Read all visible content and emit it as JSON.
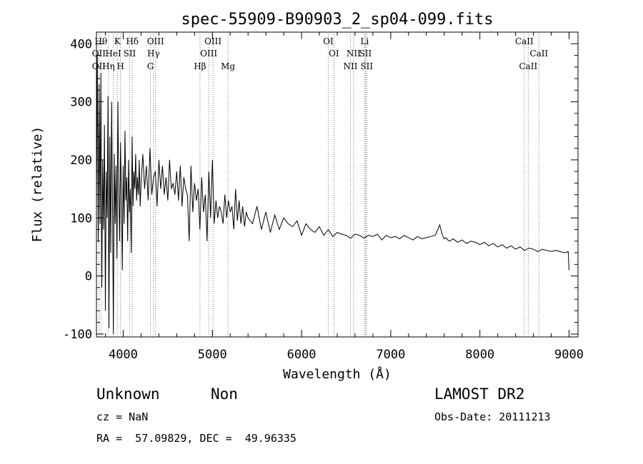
{
  "chart_data": {
    "type": "line",
    "title": "spec-55909-B90903_2_sp04-099.fits",
    "xlabel": "Wavelength (Å)",
    "ylabel": "Flux (relative)",
    "xlim": [
      3700,
      9100
    ],
    "ylim": [
      -105,
      420
    ],
    "x_ticks": [
      4000,
      5000,
      6000,
      7000,
      8000,
      9000
    ],
    "y_ticks": [
      -100,
      0,
      100,
      200,
      300,
      400
    ],
    "grid": false,
    "series": [
      {
        "name": "flux",
        "x": [
          3700,
          3710,
          3720,
          3730,
          3740,
          3750,
          3760,
          3770,
          3780,
          3790,
          3800,
          3810,
          3820,
          3830,
          3840,
          3850,
          3860,
          3870,
          3880,
          3890,
          3900,
          3910,
          3920,
          3930,
          3940,
          3950,
          3960,
          3970,
          3980,
          3990,
          4000,
          4010,
          4020,
          4030,
          4040,
          4050,
          4060,
          4070,
          4080,
          4090,
          4100,
          4110,
          4120,
          4130,
          4140,
          4150,
          4160,
          4170,
          4180,
          4190,
          4200,
          4220,
          4240,
          4260,
          4280,
          4300,
          4320,
          4340,
          4360,
          4380,
          4400,
          4420,
          4440,
          4460,
          4480,
          4500,
          4520,
          4540,
          4560,
          4580,
          4600,
          4620,
          4640,
          4660,
          4680,
          4700,
          4720,
          4740,
          4760,
          4780,
          4800,
          4820,
          4840,
          4860,
          4880,
          4900,
          4920,
          4940,
          4960,
          4980,
          5000,
          5020,
          5040,
          5060,
          5080,
          5100,
          5120,
          5140,
          5160,
          5180,
          5200,
          5220,
          5240,
          5260,
          5280,
          5300,
          5320,
          5340,
          5360,
          5380,
          5400,
          5450,
          5500,
          5550,
          5600,
          5650,
          5700,
          5750,
          5800,
          5850,
          5900,
          5950,
          6000,
          6050,
          6100,
          6150,
          6200,
          6250,
          6300,
          6350,
          6400,
          6450,
          6500,
          6550,
          6600,
          6650,
          6700,
          6750,
          6800,
          6850,
          6900,
          6950,
          7000,
          7050,
          7100,
          7150,
          7200,
          7250,
          7300,
          7350,
          7400,
          7450,
          7500,
          7550,
          7580,
          7600,
          7620,
          7640,
          7660,
          7700,
          7750,
          7800,
          7850,
          7900,
          7950,
          8000,
          8050,
          8100,
          8150,
          8200,
          8250,
          8300,
          8350,
          8400,
          8450,
          8500,
          8550,
          8600,
          8650,
          8700,
          8750,
          8800,
          8850,
          8900,
          8950,
          8990,
          9000
        ],
        "values": [
          120,
          380,
          60,
          330,
          90,
          350,
          -20,
          200,
          80,
          260,
          -60,
          180,
          100,
          310,
          -90,
          240,
          40,
          300,
          120,
          -100,
          210,
          90,
          190,
          30,
          300,
          150,
          60,
          230,
          140,
          10,
          190,
          90,
          250,
          130,
          170,
          60,
          200,
          110,
          150,
          40,
          240,
          120,
          180,
          150,
          210,
          130,
          170,
          140,
          200,
          120,
          160,
          210,
          150,
          190,
          130,
          220,
          140,
          170,
          180,
          120,
          200,
          150,
          190,
          140,
          170,
          130,
          200,
          150,
          160,
          140,
          180,
          130,
          190,
          120,
          170,
          150,
          140,
          60,
          190,
          110,
          160,
          130,
          150,
          80,
          170,
          110,
          140,
          60,
          180,
          100,
          200,
          90,
          130,
          100,
          120,
          110,
          90,
          140,
          100,
          130,
          110,
          120,
          80,
          150,
          95,
          130,
          90,
          120,
          85,
          110,
          100,
          90,
          120,
          80,
          110,
          75,
          105,
          80,
          100,
          90,
          85,
          95,
          70,
          90,
          80,
          75,
          85,
          70,
          80,
          68,
          75,
          72,
          70,
          65,
          72,
          70,
          65,
          70,
          68,
          72,
          62,
          70,
          66,
          68,
          64,
          70,
          66,
          62,
          68,
          64,
          66,
          68,
          70,
          88,
          70,
          64,
          66,
          62,
          60,
          64,
          58,
          62,
          56,
          60,
          58,
          54,
          58,
          52,
          56,
          50,
          54,
          48,
          52,
          46,
          50,
          44,
          48,
          46,
          42,
          46,
          44,
          42,
          44,
          42,
          40,
          42,
          10
        ]
      }
    ],
    "lines": [
      {
        "name": "OII",
        "x": 3727
      },
      {
        "name": "Hθ",
        "x": 3750
      },
      {
        "name": "Hη",
        "x": 3835
      },
      {
        "name": "HeI",
        "x": 3889
      },
      {
        "name": "K",
        "x": 3934
      },
      {
        "name": "H",
        "x": 3969
      },
      {
        "name": "SII",
        "x": 4072
      },
      {
        "name": "Hδ",
        "x": 4102
      },
      {
        "name": "Hγ",
        "x": 4340
      },
      {
        "name": "G",
        "x": 4305
      },
      {
        "name": "OIII",
        "x": 4363
      },
      {
        "name": "Hβ",
        "x": 4861
      },
      {
        "name": "OIII",
        "x": 4959
      },
      {
        "name": "OIII",
        "x": 5007
      },
      {
        "name": "Mg",
        "x": 5175
      },
      {
        "name": "OI",
        "x": 6300
      },
      {
        "name": "OI",
        "x": 6363
      },
      {
        "name": "NII",
        "x": 6548
      },
      {
        "name": "NII",
        "x": 6583
      },
      {
        "name": "Li",
        "x": 6708
      },
      {
        "name": "SII",
        "x": 6716
      },
      {
        "name": "SII",
        "x": 6731
      },
      {
        "name": "CaII",
        "x": 8498
      },
      {
        "name": "CaII",
        "x": 8542
      },
      {
        "name": "CaII",
        "x": 8662
      }
    ],
    "line_labels": [
      {
        "text": "Hθ",
        "x": 3750,
        "row": 0
      },
      {
        "text": "K",
        "x": 3934,
        "row": 0
      },
      {
        "text": "Hδ",
        "x": 4102,
        "row": 0
      },
      {
        "text": "OIII",
        "x": 4363,
        "row": 0
      },
      {
        "text": "OIII",
        "x": 5007,
        "row": 0
      },
      {
        "text": "OI",
        "x": 6300,
        "row": 0
      },
      {
        "text": "Li",
        "x": 6708,
        "row": 0
      },
      {
        "text": "CaII",
        "x": 8498,
        "row": 0
      },
      {
        "text": "OII",
        "x": 3727,
        "row": 1
      },
      {
        "text": "HeI",
        "x": 3889,
        "row": 1
      },
      {
        "text": "SII",
        "x": 4072,
        "row": 1
      },
      {
        "text": "Hγ",
        "x": 4340,
        "row": 1
      },
      {
        "text": "OIII",
        "x": 4959,
        "row": 1
      },
      {
        "text": "OI",
        "x": 6363,
        "row": 1
      },
      {
        "text": "NII",
        "x": 6583,
        "row": 1
      },
      {
        "text": "SII",
        "x": 6716,
        "row": 1
      },
      {
        "text": "CaII",
        "x": 8662,
        "row": 1
      },
      {
        "text": "OII",
        "x": 3727,
        "row": 2
      },
      {
        "text": "Hη",
        "x": 3835,
        "row": 2
      },
      {
        "text": "H",
        "x": 3969,
        "row": 2
      },
      {
        "text": "G",
        "x": 4305,
        "row": 2
      },
      {
        "text": "Hβ",
        "x": 4861,
        "row": 2
      },
      {
        "text": "Mg",
        "x": 5175,
        "row": 2
      },
      {
        "text": "NII",
        "x": 6548,
        "row": 2
      },
      {
        "text": "SII",
        "x": 6731,
        "row": 2
      },
      {
        "text": "CaII",
        "x": 8542,
        "row": 2
      }
    ]
  },
  "info": {
    "class_label": "Unknown",
    "subclass_label": "Non",
    "survey": "LAMOST DR2",
    "cz": "cz = NaN",
    "obs_date": "Obs-Date: 20111213",
    "coords": "RA =  57.09829, DEC =  49.96335"
  }
}
